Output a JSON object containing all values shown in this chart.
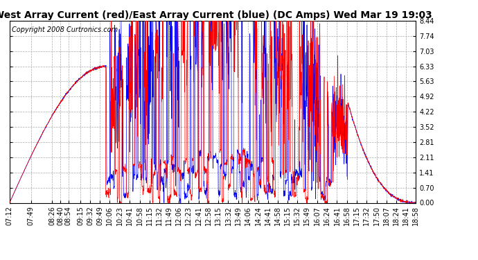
{
  "title": "West Array Current (red)/East Array Current (blue) (DC Amps) Wed Mar 19 19:03",
  "copyright": "Copyright 2008 Curtronics.com",
  "yticks": [
    0.0,
    0.7,
    1.41,
    2.11,
    2.81,
    3.52,
    4.22,
    4.92,
    5.63,
    6.33,
    7.03,
    7.74,
    8.44
  ],
  "ymin": 0.0,
  "ymax": 8.44,
  "bg_color": "#ffffff",
  "grid_color": "#aaaaaa",
  "line_color_red": "#ff0000",
  "line_color_blue": "#0000ff",
  "title_fontsize": 10,
  "copyright_fontsize": 7,
  "tick_fontsize": 7,
  "xtick_labels": [
    "07:12",
    "07:49",
    "08:26",
    "08:40",
    "08:54",
    "09:15",
    "09:32",
    "09:49",
    "10:06",
    "10:23",
    "10:41",
    "10:58",
    "11:15",
    "11:32",
    "11:49",
    "12:06",
    "12:23",
    "12:41",
    "12:58",
    "13:15",
    "13:32",
    "13:49",
    "14:06",
    "14:24",
    "14:41",
    "14:58",
    "15:15",
    "15:32",
    "15:49",
    "16:07",
    "16:24",
    "16:41",
    "16:58",
    "17:15",
    "17:32",
    "17:50",
    "18:07",
    "18:24",
    "18:41",
    "18:58"
  ]
}
